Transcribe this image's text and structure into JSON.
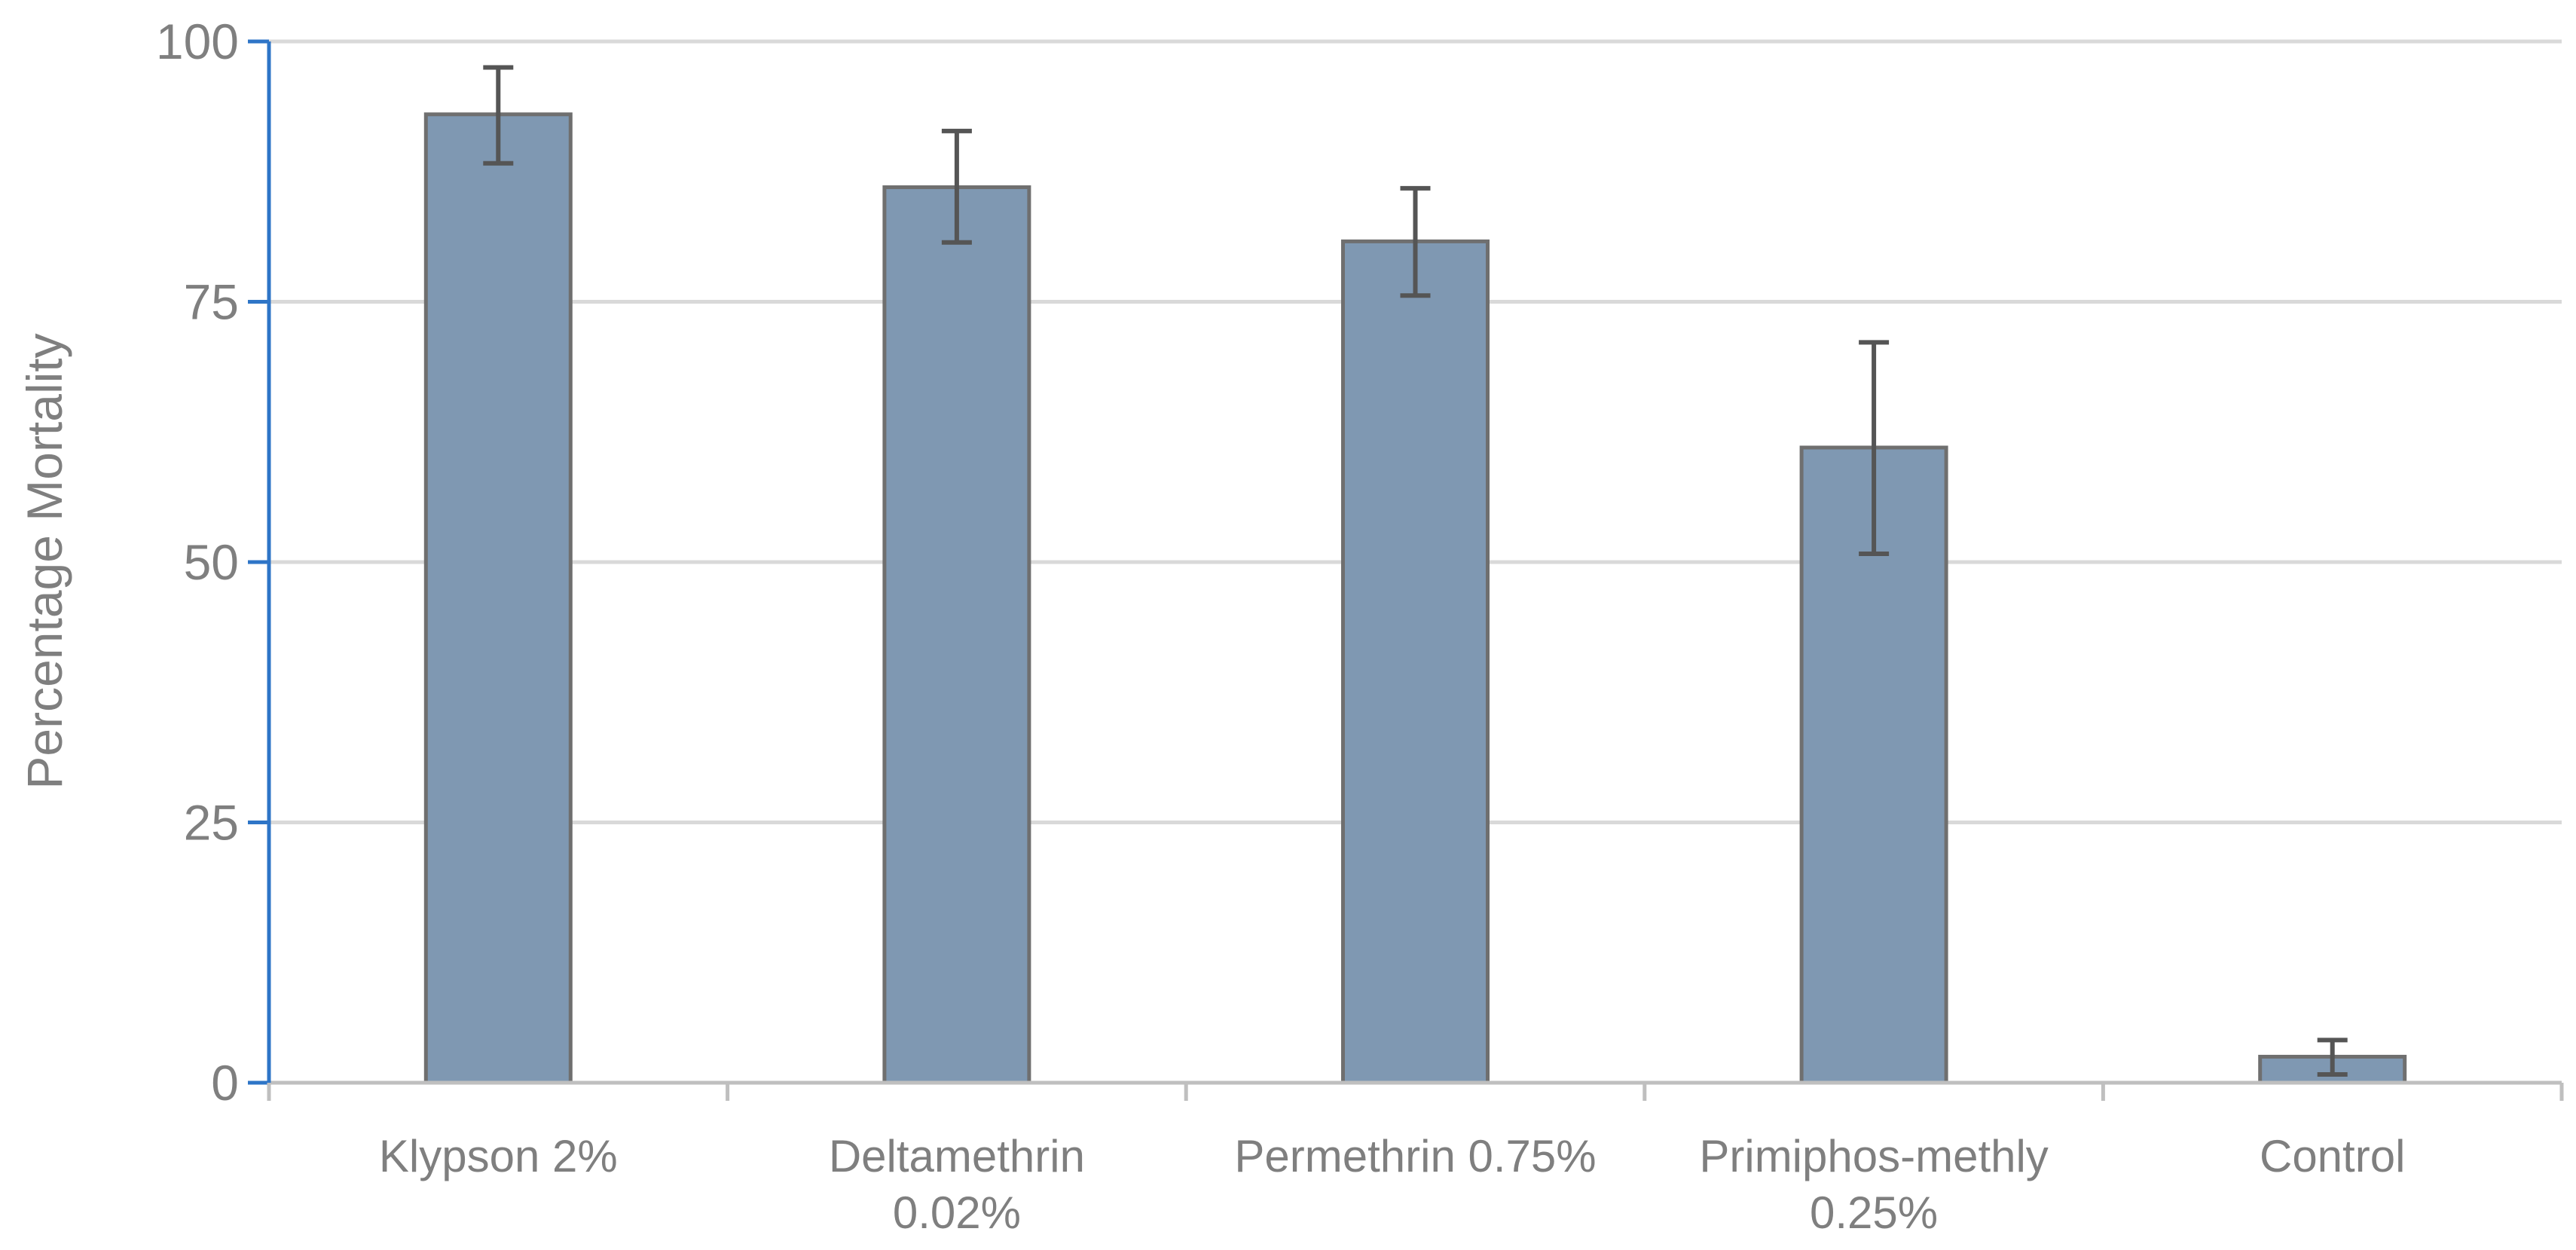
{
  "chart_data": {
    "type": "bar",
    "title": "",
    "xlabel": "",
    "ylabel": "Percentage Mortality",
    "ylim": [
      0,
      100
    ],
    "yticks": [
      0,
      25,
      50,
      75,
      100
    ],
    "grid": true,
    "categories": [
      [
        "Klypson 2%"
      ],
      [
        "Deltamethrin",
        "0.02%"
      ],
      [
        "Permethrin 0.75%"
      ],
      [
        "Primiphos-methly",
        "0.25%"
      ],
      [
        "Control"
      ]
    ],
    "values": [
      93,
      86,
      80.8,
      61,
      2.5
    ],
    "error_low": [
      88.3,
      80.7,
      75.6,
      50.8,
      0.8
    ],
    "error_high": [
      97.5,
      91.4,
      85.9,
      71.1,
      4.1
    ]
  },
  "colors": {
    "bar_fill": "#7f98b2",
    "bar_stroke": "#6f6f6f",
    "error_bar": "#555555",
    "grid": "#d9d9d9",
    "y_axis_line": "#2e75c7",
    "x_axis_line": "#bfbfbf",
    "tick_text": "#7f7f7f"
  }
}
